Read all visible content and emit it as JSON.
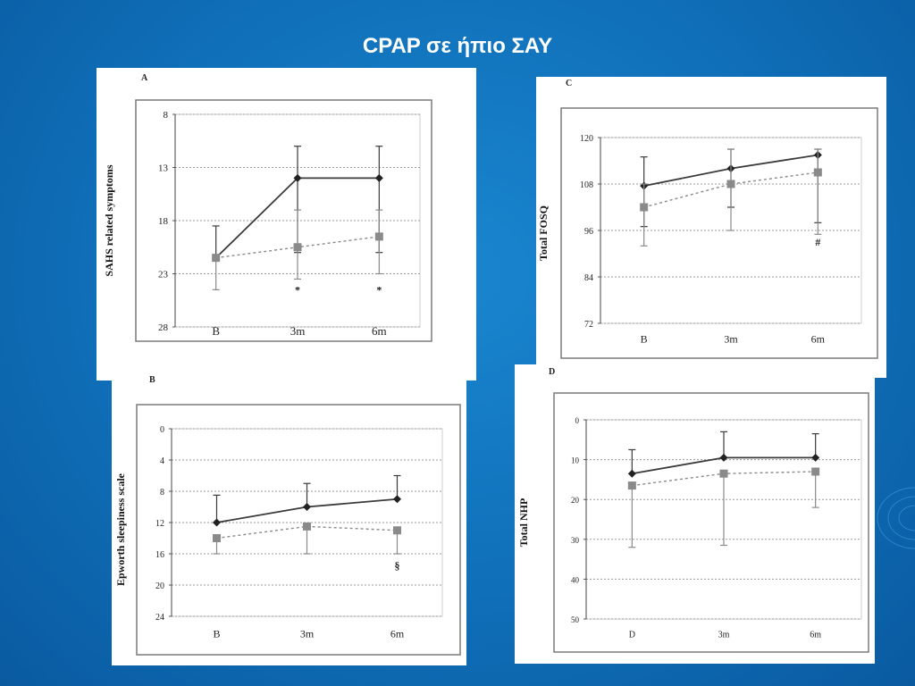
{
  "slide": {
    "title": "CPAP σε ήπιο ΣΑΥ"
  },
  "colors": {
    "background": "#0f6fb8",
    "cpap_series": "#3a3a3a",
    "control_series": "#8a8a8a",
    "grid": "#9a9a9a"
  },
  "chart_data": [
    {
      "id": "A",
      "type": "line",
      "panel_label": "A",
      "ylabel": "SAHS related symptoms",
      "categories": [
        "B",
        "3m",
        "6m"
      ],
      "y_ticks": [
        8,
        13,
        18,
        23,
        28
      ],
      "ylim": [
        8,
        28
      ],
      "y_inverted": true,
      "grid": true,
      "series": [
        {
          "style": "solid-diamond",
          "values": [
            21.5,
            14,
            14
          ],
          "err_low": [
            18.5,
            11,
            11
          ],
          "err_high": [
            21.5,
            21,
            21
          ]
        },
        {
          "style": "dashed-square",
          "values": [
            21.5,
            20.5,
            19.5
          ],
          "err_low": [
            21.5,
            17,
            17
          ],
          "err_high": [
            24.5,
            23.5,
            23
          ]
        }
      ],
      "annotations": [
        {
          "text": "*",
          "x": "3m",
          "y": 24.5
        },
        {
          "text": "*",
          "x": "6m",
          "y": 24.5
        }
      ]
    },
    {
      "id": "C",
      "type": "line",
      "panel_label": "C",
      "ylabel": "Total  FOSQ",
      "categories": [
        "B",
        "3m",
        "6m"
      ],
      "y_ticks": [
        120,
        108,
        96,
        84,
        72
      ],
      "ylim": [
        72,
        120
      ],
      "y_inverted": false,
      "grid": true,
      "series": [
        {
          "style": "solid-diamond",
          "values": [
            107.5,
            112,
            115.5
          ],
          "err_low": [
            97,
            102,
            98
          ],
          "err_high": [
            115,
            117,
            117
          ]
        },
        {
          "style": "dashed-square",
          "values": [
            102,
            108,
            111
          ],
          "err_low": [
            92,
            96,
            95
          ],
          "err_high": [
            108,
            117,
            117
          ]
        }
      ],
      "annotations": [
        {
          "text": "#",
          "x": "6m",
          "y": 93
        }
      ]
    },
    {
      "id": "B",
      "type": "line",
      "panel_label": "B",
      "ylabel": "Epworth sleepiness  scale",
      "categories": [
        "B",
        "3m",
        "6m"
      ],
      "y_ticks": [
        0,
        4,
        8,
        12,
        16,
        20,
        24
      ],
      "ylim": [
        0,
        24
      ],
      "y_inverted": true,
      "grid": true,
      "series": [
        {
          "style": "solid-diamond",
          "values": [
            12,
            10,
            9
          ],
          "err_low": [
            8.5,
            7,
            6
          ],
          "err_high": [
            12,
            10,
            9
          ]
        },
        {
          "style": "dashed-square",
          "values": [
            14,
            12.5,
            13
          ],
          "err_low": [
            14,
            12.5,
            13
          ],
          "err_high": [
            16,
            16,
            16
          ]
        }
      ],
      "annotations": [
        {
          "text": "§",
          "x": "6m",
          "y": 17.5
        }
      ]
    },
    {
      "id": "D",
      "type": "line",
      "panel_label": "D",
      "ylabel": "Total  NHP",
      "categories": [
        "D",
        "3m",
        "6m"
      ],
      "y_ticks": [
        0,
        10,
        20,
        30,
        40,
        50
      ],
      "ylim": [
        0,
        50
      ],
      "y_inverted": true,
      "grid": true,
      "series": [
        {
          "style": "solid-diamond",
          "values": [
            13.5,
            9.5,
            9.5
          ],
          "err_low": [
            7.5,
            3,
            3.5
          ],
          "err_high": [
            13.5,
            9.5,
            9.5
          ]
        },
        {
          "style": "dashed-square",
          "values": [
            16.5,
            13.5,
            13
          ],
          "err_low": [
            16.5,
            13.5,
            13
          ],
          "err_high": [
            32,
            31.5,
            22
          ]
        }
      ],
      "annotations": []
    }
  ]
}
